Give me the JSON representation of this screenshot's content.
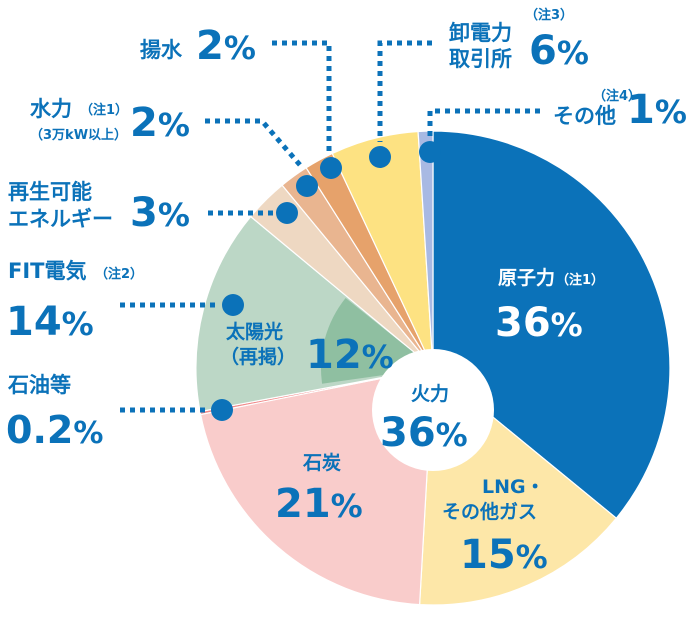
{
  "chart_data": {
    "type": "pie",
    "slices": [
      {
        "label_lines": [
          "原子力"
        ],
        "note": "（注1）",
        "value": 36,
        "display": "36%",
        "color": "#0b72b9",
        "text_color": "#ffffff"
      },
      {
        "label_lines": [
          "LNG・",
          "その他ガス"
        ],
        "value": 15,
        "display": "15%",
        "color": "#fde7a8",
        "text_color": "#0b72b9"
      },
      {
        "label_lines": [
          "石炭"
        ],
        "value": 21,
        "display": "21%",
        "color": "#f9cccb",
        "text_color": "#0b72b9"
      },
      {
        "label_lines": [
          "石油等"
        ],
        "value": 0.2,
        "display": "0.2%",
        "color": "#f08a8a",
        "text_color": "#0b72b9"
      },
      {
        "label_lines": [
          "FIT電気"
        ],
        "note": "（注2）",
        "value": 14,
        "display": "14%",
        "color": "#bcd7c6",
        "text_color": "#0b72b9"
      },
      {
        "label_lines": [
          "再生可能",
          "エネルギー"
        ],
        "value": 3,
        "display": "3%",
        "color": "#eed8c2",
        "text_color": "#0b72b9"
      },
      {
        "label_lines": [
          "水力"
        ],
        "note": "（注1）",
        "sub": "（3万kW以上）",
        "value": 2,
        "display": "2%",
        "color": "#e9b590",
        "text_color": "#0b72b9"
      },
      {
        "label_lines": [
          "揚水"
        ],
        "value": 2,
        "display": "2%",
        "color": "#e6a26b",
        "text_color": "#0b72b9"
      },
      {
        "label_lines": [
          "卸電力",
          "取引所"
        ],
        "note": "（注3）",
        "value": 6,
        "display": "6%",
        "color": "#fde282",
        "text_color": "#0b72b9"
      },
      {
        "label_lines": [
          "その他"
        ],
        "note": "（注4）",
        "value": 1,
        "display": "1%",
        "color": "#a8b9e3",
        "text_color": "#0b72b9"
      }
    ],
    "inner_group": {
      "label": "火力",
      "value": 36,
      "display": "36%"
    },
    "fit_inner": {
      "label_lines": [
        "太陽光",
        "（再掲）"
      ],
      "value": 12,
      "display": "12%",
      "color": "#8fbfa1"
    },
    "accent_color": "#0b72b9"
  }
}
